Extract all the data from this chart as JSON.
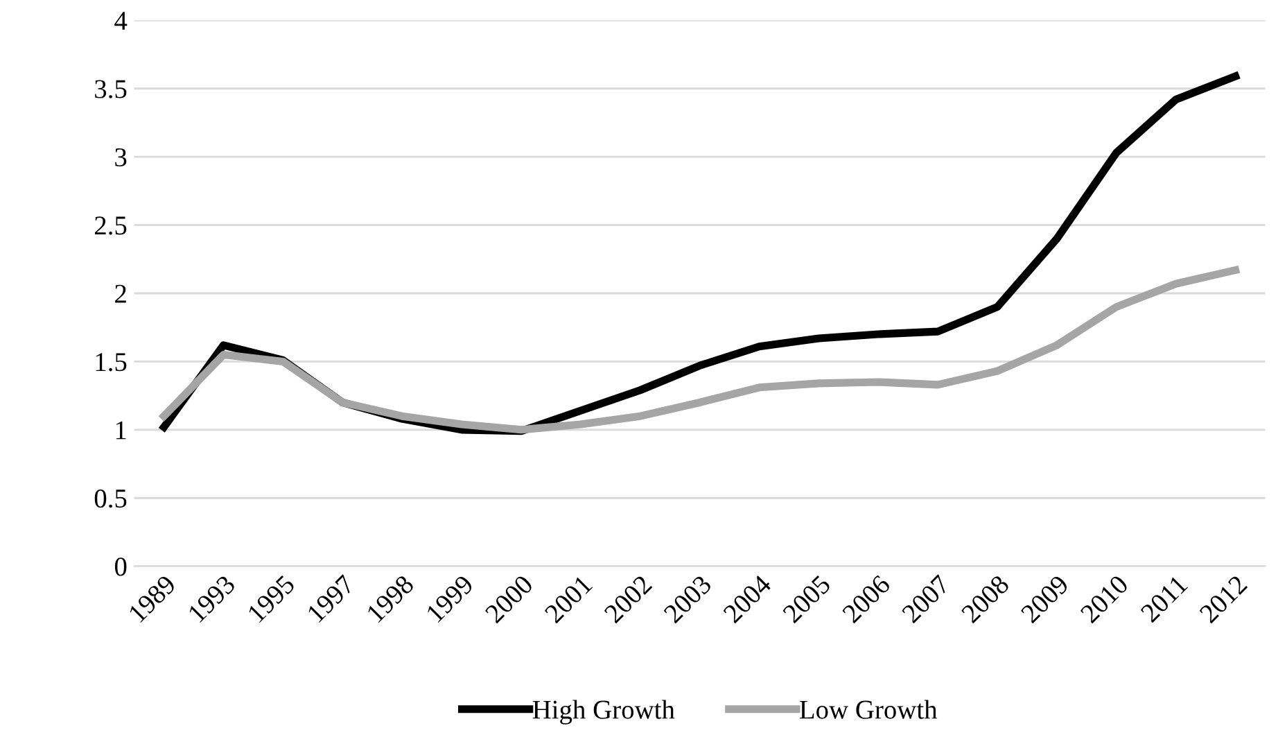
{
  "chart_data": {
    "type": "line",
    "categories": [
      "1989",
      "1993",
      "1995",
      "1997",
      "1998",
      "1999",
      "2000",
      "2001",
      "2002",
      "2003",
      "2004",
      "2005",
      "2006",
      "2007",
      "2008",
      "2009",
      "2010",
      "2011",
      "2012"
    ],
    "series": [
      {
        "name": "High Growth",
        "color": "#000000",
        "values": [
          1.02,
          1.62,
          1.51,
          1.2,
          1.08,
          1.0,
          0.99,
          1.14,
          1.29,
          1.47,
          1.61,
          1.67,
          1.7,
          1.72,
          1.9,
          2.4,
          3.03,
          3.42,
          3.59
        ]
      },
      {
        "name": "Low Growth",
        "color": "#a5a5a5",
        "values": [
          1.1,
          1.55,
          1.5,
          1.2,
          1.1,
          1.04,
          1.0,
          1.04,
          1.1,
          1.2,
          1.31,
          1.34,
          1.35,
          1.33,
          1.43,
          1.62,
          1.9,
          2.07,
          2.17
        ]
      }
    ],
    "ylim": [
      0,
      4
    ],
    "yticks": [
      0,
      0.5,
      1,
      1.5,
      2,
      2.5,
      3,
      3.5,
      4
    ],
    "grid": "y",
    "legend": "bottom",
    "marker": "none",
    "line_style": "solid"
  }
}
